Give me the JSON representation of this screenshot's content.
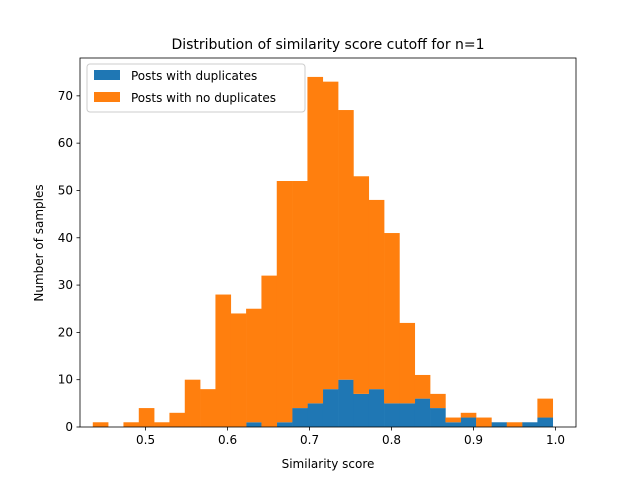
{
  "chart_data": {
    "type": "bar",
    "title": "Distribution of similarity score cutoff for n=1",
    "xlabel": "Similarity score",
    "ylabel": "Number of samples",
    "xlim": [
      0.42,
      1.025
    ],
    "ylim": [
      0,
      78
    ],
    "xticks": [
      0.5,
      0.6,
      0.7,
      0.8,
      0.9,
      1.0
    ],
    "xtick_labels": [
      "0.5",
      "0.6",
      "0.7",
      "0.8",
      "0.9",
      "1.0"
    ],
    "yticks": [
      0,
      10,
      20,
      30,
      40,
      50,
      60,
      70
    ],
    "ytick_labels": [
      "0",
      "10",
      "20",
      "30",
      "40",
      "50",
      "60",
      "70"
    ],
    "grid": false,
    "legend_position": "top-left",
    "stacked": true,
    "bin_edges": [
      0.4356,
      0.4543,
      0.473,
      0.4917,
      0.5104,
      0.5291,
      0.5478,
      0.5665,
      0.5852,
      0.6039,
      0.6226,
      0.6413,
      0.66,
      0.6787,
      0.6974,
      0.7161,
      0.7348,
      0.7535,
      0.7722,
      0.7909,
      0.8096,
      0.8283,
      0.847,
      0.8657,
      0.8844,
      0.9031,
      0.9218,
      0.9405,
      0.9592,
      0.9779,
      0.9966
    ],
    "series": [
      {
        "name": "Posts with duplicates",
        "color": "#1f77b4",
        "values": [
          0,
          0,
          0,
          0,
          0,
          0,
          0,
          0,
          0,
          0,
          1,
          0,
          1,
          4,
          5,
          8,
          10,
          7,
          8,
          5,
          5,
          6,
          4,
          1,
          2,
          0,
          1,
          0,
          1,
          2
        ]
      },
      {
        "name": "Posts with no duplicates",
        "color": "#ff7f0e",
        "values": [
          1,
          0,
          1,
          4,
          1,
          3,
          10,
          8,
          28,
          24,
          24,
          32,
          51,
          48,
          69,
          65,
          57,
          46,
          40,
          36,
          17,
          5,
          3,
          1,
          1,
          2,
          0,
          1,
          0,
          4
        ]
      }
    ]
  }
}
